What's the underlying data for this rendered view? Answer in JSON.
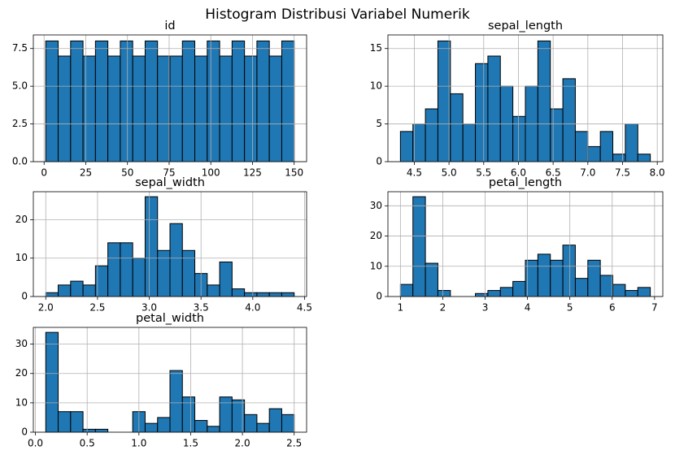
{
  "title": "Histogram Distribusi Variabel Numerik",
  "chart_data": [
    {
      "type": "histogram",
      "title": "id",
      "color": "#1f77b4",
      "edgecolor": "#000000",
      "grid": true,
      "bins": [
        1,
        8.45,
        15.9,
        23.35,
        30.8,
        38.25,
        45.7,
        53.15,
        60.6,
        68.05,
        75.5,
        82.95,
        90.4,
        97.85,
        105.3,
        112.75,
        120.2,
        127.65,
        135.1,
        142.55,
        150
      ],
      "values": [
        8,
        7,
        8,
        7,
        8,
        7,
        8,
        7,
        8,
        7,
        7,
        8,
        7,
        8,
        7,
        8,
        7,
        8,
        7,
        8
      ],
      "xlim": [
        -6.45,
        157.45
      ],
      "xticks": [
        0,
        25,
        50,
        75,
        100,
        125,
        150
      ],
      "ylim": [
        0,
        8.4
      ],
      "yticks": [
        {
          "value": 0,
          "label": "0.0"
        },
        2.5,
        {
          "value": 5,
          "label": "5.0"
        },
        7.5
      ]
    },
    {
      "type": "histogram",
      "title": "sepal_length",
      "color": "#1f77b4",
      "edgecolor": "#000000",
      "grid": true,
      "bins": [
        4.3,
        4.48,
        4.66,
        4.84,
        5.02,
        5.2,
        5.38,
        5.56,
        5.74,
        5.92,
        6.1,
        6.28,
        6.46,
        6.64,
        6.82,
        7.0,
        7.18,
        7.36,
        7.54,
        7.72,
        7.9
      ],
      "values": [
        4,
        5,
        7,
        16,
        9,
        5,
        13,
        14,
        10,
        6,
        10,
        16,
        7,
        11,
        4,
        2,
        4,
        1,
        5,
        1
      ],
      "xlim": [
        4.12,
        8.08
      ],
      "xticks": [
        4.5,
        {
          "value": 5,
          "label": "5.0"
        },
        5.5,
        {
          "value": 6,
          "label": "6.0"
        },
        6.5,
        {
          "value": 7,
          "label": "7.0"
        },
        7.5,
        {
          "value": 8,
          "label": "8.0"
        }
      ],
      "ylim": [
        0,
        16.8
      ],
      "yticks": [
        0,
        5,
        10,
        15
      ]
    },
    {
      "type": "histogram",
      "title": "sepal_width",
      "color": "#1f77b4",
      "edgecolor": "#000000",
      "grid": true,
      "bins": [
        2.0,
        2.12,
        2.24,
        2.36,
        2.48,
        2.6,
        2.72,
        2.84,
        2.96,
        3.08,
        3.2,
        3.32,
        3.44,
        3.56,
        3.68,
        3.8,
        3.92,
        4.04,
        4.16,
        4.28,
        4.4
      ],
      "values": [
        1,
        3,
        4,
        3,
        8,
        14,
        14,
        10,
        26,
        12,
        19,
        12,
        6,
        3,
        9,
        2,
        1,
        1,
        1,
        1
      ],
      "xlim": [
        1.88,
        4.52
      ],
      "xticks": [
        {
          "value": 2,
          "label": "2.0"
        },
        2.5,
        {
          "value": 3,
          "label": "3.0"
        },
        3.5,
        {
          "value": 4,
          "label": "4.0"
        },
        4.5
      ],
      "ylim": [
        0,
        27.3
      ],
      "yticks": [
        0,
        10,
        20
      ]
    },
    {
      "type": "histogram",
      "title": "petal_length",
      "color": "#1f77b4",
      "edgecolor": "#000000",
      "grid": true,
      "bins": [
        1.0,
        1.295,
        1.59,
        1.885,
        2.18,
        2.475,
        2.77,
        3.065,
        3.36,
        3.655,
        3.95,
        4.245,
        4.54,
        4.835,
        5.13,
        5.425,
        5.72,
        6.015,
        6.31,
        6.605,
        6.9
      ],
      "values": [
        4,
        33,
        11,
        2,
        0,
        0,
        1,
        2,
        3,
        5,
        12,
        14,
        12,
        17,
        6,
        12,
        7,
        4,
        2,
        3
      ],
      "xlim": [
        0.705,
        7.195
      ],
      "xticks": [
        1,
        2,
        3,
        4,
        5,
        6,
        7
      ],
      "ylim": [
        0,
        34.65
      ],
      "yticks": [
        0,
        10,
        20,
        30
      ]
    },
    {
      "type": "histogram",
      "title": "petal_width",
      "color": "#1f77b4",
      "edgecolor": "#000000",
      "grid": true,
      "bins": [
        0.1,
        0.22,
        0.34,
        0.46,
        0.58,
        0.7,
        0.82,
        0.94,
        1.06,
        1.18,
        1.3,
        1.42,
        1.54,
        1.66,
        1.78,
        1.9,
        2.02,
        2.14,
        2.26,
        2.38,
        2.5
      ],
      "values": [
        34,
        7,
        7,
        1,
        1,
        0,
        0,
        7,
        3,
        5,
        21,
        12,
        4,
        2,
        12,
        11,
        6,
        3,
        8,
        6
      ],
      "xlim": [
        -0.02,
        2.62
      ],
      "xticks": [
        {
          "value": 0,
          "label": "0.0"
        },
        0.5,
        {
          "value": 1,
          "label": "1.0"
        },
        1.5,
        {
          "value": 2,
          "label": "2.0"
        },
        2.5
      ],
      "ylim": [
        0,
        35.7
      ],
      "yticks": [
        0,
        10,
        20,
        30
      ]
    }
  ]
}
